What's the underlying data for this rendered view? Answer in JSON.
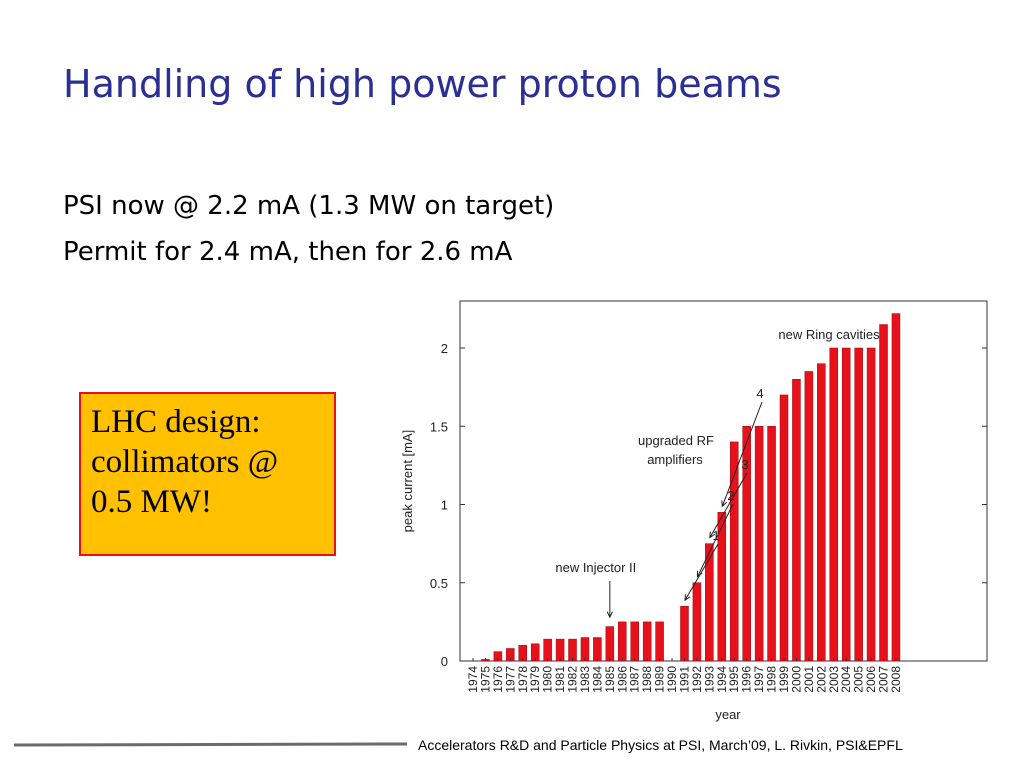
{
  "slide": {
    "title": "Handling of high power proton beams",
    "bullets": [
      "PSI now @ 2.2 mA (1.3 MW on target)",
      "Permit for 2.4 mA, then for 2.6 mA"
    ],
    "callout": [
      "LHC design:",
      "collimators @",
      "0.5 MW!"
    ],
    "footer": "Accelerators R&D and Particle Physics at PSI, March’09, L. Rivkin, PSI&EPFL"
  },
  "colors": {
    "title": "#2b2f93",
    "bar": "#e8101a",
    "callout_fill": "#ffc000",
    "callout_border": "#e8101a"
  },
  "chart_data": {
    "type": "bar",
    "xlabel": "year",
    "ylabel": "peak current [mA]",
    "ylim": [
      0,
      2.3
    ],
    "yticks": [
      0,
      0.5,
      1,
      1.5,
      2
    ],
    "ytick_labels": [
      "0",
      "0.5",
      "1",
      "1.5",
      "2"
    ],
    "categories": [
      "1974",
      "1975",
      "1976",
      "1977",
      "1978",
      "1979",
      "1980",
      "1981",
      "1982",
      "1983",
      "1984",
      "1985",
      "1986",
      "1987",
      "1988",
      "1989",
      "1990",
      "1991",
      "1992",
      "1993",
      "1994",
      "1995",
      "1996",
      "1997",
      "1998",
      "1999",
      "2000",
      "2001",
      "2002",
      "2003",
      "2004",
      "2005",
      "2006",
      "2007",
      "2008"
    ],
    "values": [
      0,
      0.01,
      0.06,
      0.08,
      0.1,
      0.11,
      0.14,
      0.14,
      0.14,
      0.15,
      0.15,
      0.22,
      0.25,
      0.25,
      0.25,
      0.25,
      0,
      0.35,
      0.5,
      0.75,
      0.95,
      1.4,
      1.5,
      1.5,
      1.5,
      1.7,
      1.8,
      1.85,
      1.9,
      2.0,
      2.0,
      2.0,
      2.0,
      2.15,
      2.22
    ],
    "annotations": [
      {
        "label": "new Injector II",
        "year": "1985",
        "arrow": true
      },
      {
        "label": "1",
        "year": "1991",
        "arrow": true
      },
      {
        "label": "2",
        "year": "1992",
        "arrow": true
      },
      {
        "label": "3",
        "year": "1993",
        "arrow": true
      },
      {
        "label": "4",
        "year": "1994",
        "arrow": true
      },
      {
        "label": "upgraded RF",
        "year": "",
        "arrow": false
      },
      {
        "label": "amplifiers",
        "year": "",
        "arrow": false
      },
      {
        "label": "new Ring cavities",
        "year": "",
        "arrow": false
      }
    ]
  }
}
